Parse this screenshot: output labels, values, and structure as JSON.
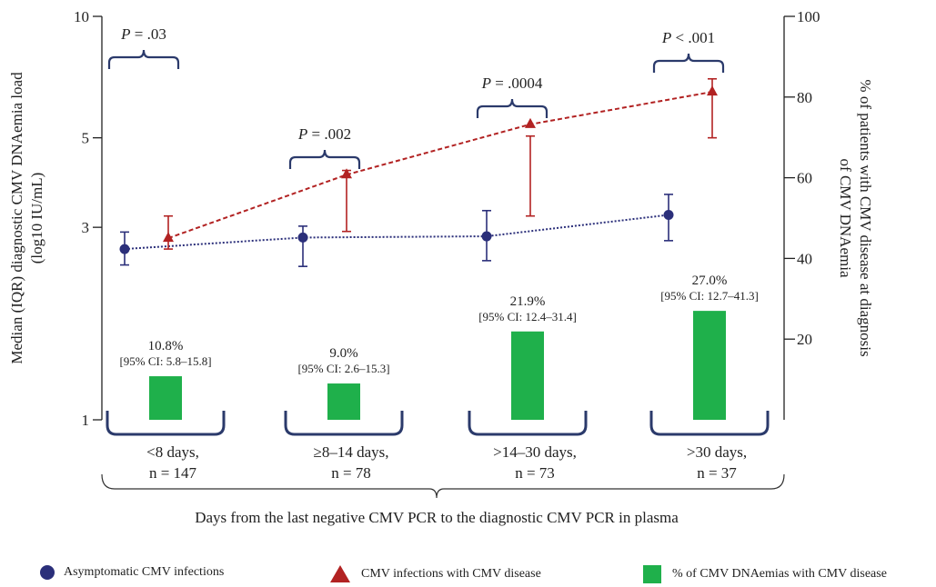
{
  "chart_data": {
    "type": "line",
    "xlabel": "Days from the last negative CMV PCR to the diagnostic CMV PCR in plasma",
    "ylabel_left": [
      "Median (IQR) diagnostic CMV DNAemia load",
      "(log10 IU/mL)"
    ],
    "ylabel_right": [
      "% of patients with CMV disease at diagnosis",
      "of CMV DNAemia"
    ],
    "y_left_scale": "log",
    "y_left_ticks": [
      1,
      3,
      5,
      10
    ],
    "y_left_tick_labels": [
      "1",
      "3",
      "5",
      "10"
    ],
    "y_right_range": [
      0,
      100
    ],
    "y_right_ticks": [
      20,
      40,
      60,
      80,
      100
    ],
    "y_right_tick_labels": [
      "20",
      "40",
      "60",
      "80",
      "100"
    ],
    "categories": [
      [
        "<8 days,",
        "n = 147"
      ],
      [
        "≥8–14 days,",
        "n = 78"
      ],
      [
        ">14–30 days,",
        "n = 73"
      ],
      [
        ">30 days,",
        "n = 37"
      ]
    ],
    "series": [
      {
        "name": "Asymptomatic CMV infections",
        "color": "#2b2f7a",
        "marker": "circle",
        "median": [
          2.65,
          2.83,
          2.85,
          3.22
        ],
        "low": [
          2.42,
          2.4,
          2.48,
          2.78
        ],
        "high": [
          2.92,
          3.02,
          3.3,
          3.62
        ]
      },
      {
        "name": "CMV infections with CMV disease",
        "color": "#b22222",
        "marker": "triangle",
        "median": [
          2.82,
          4.05,
          5.4,
          6.5
        ],
        "low": [
          2.65,
          2.93,
          3.2,
          5.0
        ],
        "high": [
          3.2,
          4.15,
          5.05,
          7.0
        ]
      },
      {
        "name": "% of CMV DNAemias with CMV disease",
        "color": "#1fb04b",
        "type": "bar",
        "axis": "right",
        "values": [
          10.8,
          9.0,
          21.9,
          27.0
        ],
        "pct_labels": [
          "10.8%",
          "9.0%",
          "21.9%",
          "27.0%"
        ],
        "ci_labels": [
          "[95% CI: 5.8–15.8]",
          "[95% CI: 2.6–15.3]",
          "[95% CI: 12.4–31.4]",
          "[95% CI: 12.7–41.3]"
        ]
      }
    ],
    "p_values": [
      {
        "label": "P",
        "value": "= .03"
      },
      {
        "label": "P",
        "value": "= .002"
      },
      {
        "label": "P",
        "value": "= .0004"
      },
      {
        "label": "P",
        "value": "< .001"
      }
    ]
  }
}
